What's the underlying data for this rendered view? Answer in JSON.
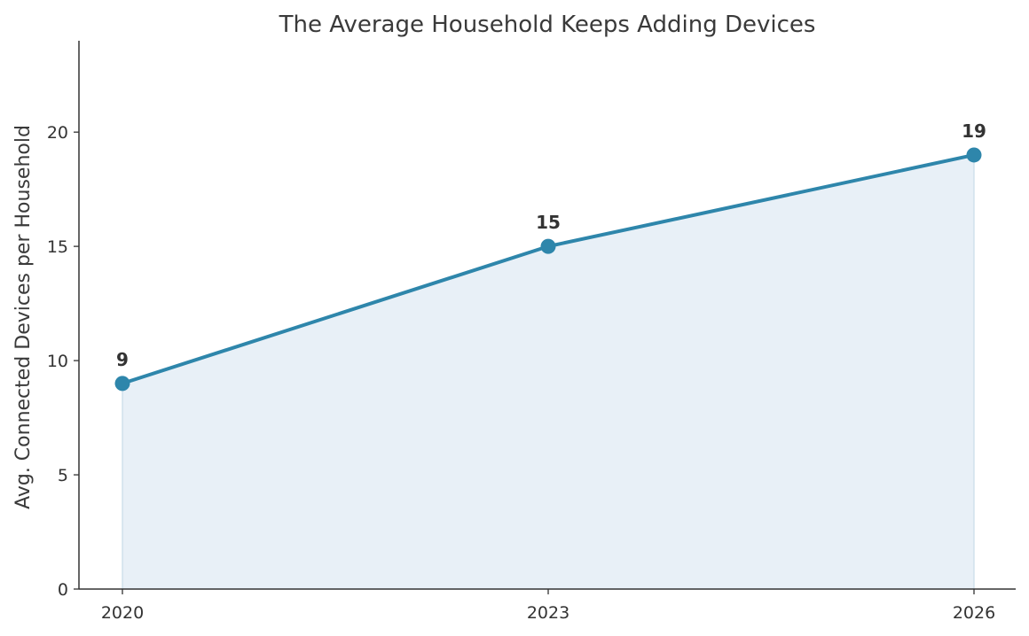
{
  "chart_data": {
    "type": "area",
    "title": "The Average Household Keeps Adding Devices",
    "xlabel": "",
    "ylabel": "Avg. Connected Devices per Household",
    "categories": [
      "2020",
      "2023",
      "2026"
    ],
    "values": [
      9,
      15,
      19
    ],
    "data_labels": [
      "9",
      "15",
      "19"
    ],
    "yticks": [
      0,
      5,
      10,
      15,
      20
    ],
    "ylim": [
      0,
      24
    ],
    "grid": false,
    "legend": "none",
    "colors": {
      "line": "#2e86ab",
      "fill": "#e8f0f7",
      "axis": "#333333"
    }
  }
}
